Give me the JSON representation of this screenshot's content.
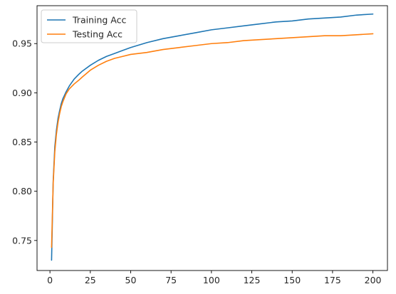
{
  "chart_data": {
    "type": "line",
    "title": "",
    "xlabel": "",
    "ylabel": "",
    "xlim": [
      -8,
      209
    ],
    "ylim": [
      0.7195,
      0.9885
    ],
    "xticks": [
      0,
      25,
      50,
      75,
      100,
      125,
      150,
      175,
      200
    ],
    "yticks": [
      0.75,
      0.8,
      0.85,
      0.9,
      0.95
    ],
    "xtick_labels": [
      "0",
      "25",
      "50",
      "75",
      "100",
      "125",
      "150",
      "175",
      "200"
    ],
    "ytick_labels": [
      "0.75",
      "0.80",
      "0.85",
      "0.90",
      "0.95"
    ],
    "grid": false,
    "legend_position": "upper-left",
    "series": [
      {
        "name": "Training Acc",
        "color": "#1f77b4",
        "x": [
          1,
          2,
          3,
          4,
          5,
          6,
          7,
          8,
          10,
          12,
          15,
          18,
          20,
          25,
          30,
          35,
          40,
          45,
          50,
          60,
          70,
          80,
          90,
          100,
          110,
          120,
          130,
          140,
          150,
          160,
          170,
          180,
          190,
          200
        ],
        "y": [
          0.73,
          0.81,
          0.845,
          0.862,
          0.874,
          0.882,
          0.889,
          0.894,
          0.901,
          0.907,
          0.914,
          0.919,
          0.922,
          0.928,
          0.933,
          0.937,
          0.94,
          0.943,
          0.946,
          0.951,
          0.955,
          0.958,
          0.961,
          0.964,
          0.966,
          0.968,
          0.97,
          0.972,
          0.973,
          0.975,
          0.976,
          0.977,
          0.979,
          0.98
        ]
      },
      {
        "name": "Testing Acc",
        "color": "#ff7f0e",
        "x": [
          1,
          2,
          3,
          4,
          5,
          6,
          7,
          8,
          10,
          12,
          15,
          18,
          20,
          25,
          30,
          35,
          40,
          45,
          50,
          60,
          70,
          80,
          90,
          100,
          110,
          120,
          130,
          140,
          150,
          160,
          170,
          180,
          190,
          200
        ],
        "y": [
          0.743,
          0.808,
          0.84,
          0.858,
          0.87,
          0.879,
          0.886,
          0.891,
          0.899,
          0.904,
          0.909,
          0.913,
          0.916,
          0.923,
          0.928,
          0.932,
          0.935,
          0.937,
          0.939,
          0.941,
          0.944,
          0.946,
          0.948,
          0.95,
          0.951,
          0.953,
          0.954,
          0.955,
          0.956,
          0.957,
          0.958,
          0.958,
          0.959,
          0.96
        ]
      }
    ]
  }
}
